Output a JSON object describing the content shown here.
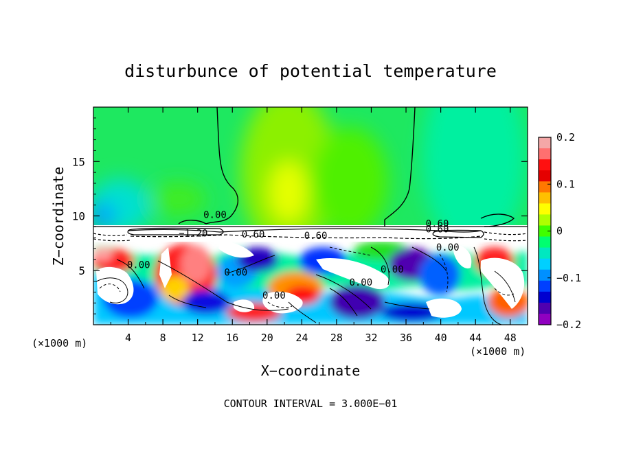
{
  "chart_data": {
    "type": "heatmap",
    "title": "disturbunce of potential temperature",
    "xlabel": "X−coordinate",
    "ylabel": "Z−coordinate",
    "x_unit_left": "(×1000 m)",
    "x_unit_right": "(×1000 m)",
    "xlim": [
      0,
      50
    ],
    "ylim": [
      0,
      20
    ],
    "x_ticks": [
      "4",
      "8",
      "12",
      "16",
      "20",
      "24",
      "28",
      "32",
      "36",
      "40",
      "44",
      "48"
    ],
    "x_tick_values": [
      4,
      8,
      12,
      16,
      20,
      24,
      28,
      32,
      36,
      40,
      44,
      48
    ],
    "y_ticks": [
      "5",
      "10",
      "15"
    ],
    "y_tick_values": [
      5,
      10,
      15
    ],
    "colorbar": {
      "range": [
        -0.2,
        0.2
      ],
      "ticks": [
        "0.2",
        "0.1",
        "0",
        "−0.1",
        "−0.2"
      ],
      "tick_values": [
        0.2,
        0.1,
        0,
        -0.1,
        -0.2
      ],
      "colors": [
        "#f4a7a7",
        "#ff7070",
        "#ff1010",
        "#e50000",
        "#ff7800",
        "#ffc000",
        "#ffff00",
        "#b0ff00",
        "#40ff00",
        "#00ff70",
        "#00e8c0",
        "#00d0ff",
        "#0090ff",
        "#0040ff",
        "#0000d0",
        "#5000b0",
        "#9000c0"
      ]
    },
    "contour_labels": [
      {
        "text": "0.00",
        "x": 14,
        "z": 9.8
      },
      {
        "text": "−1.20",
        "x": 11.5,
        "z": 8.1
      },
      {
        "text": "0.60",
        "x": 18.4,
        "z": 8.0
      },
      {
        "text": "0.60",
        "x": 39.6,
        "z": 9.0
      },
      {
        "text": "0.60",
        "x": 39.6,
        "z": 8.5
      },
      {
        "text": "0.60",
        "x": 25.6,
        "z": 7.9
      },
      {
        "text": "0.00",
        "x": 5.2,
        "z": 5.2
      },
      {
        "text": "0.00",
        "x": 16.4,
        "z": 4.5
      },
      {
        "text": "0.00",
        "x": 34.4,
        "z": 4.8
      },
      {
        "text": "0.00",
        "x": 30.8,
        "z": 3.6
      },
      {
        "text": "0.00",
        "x": 40.8,
        "z": 6.8
      },
      {
        "text": "0.00",
        "x": 20.8,
        "z": 2.4
      }
    ],
    "footnote": "CONTOUR INTERVAL = 3.000E−01"
  }
}
